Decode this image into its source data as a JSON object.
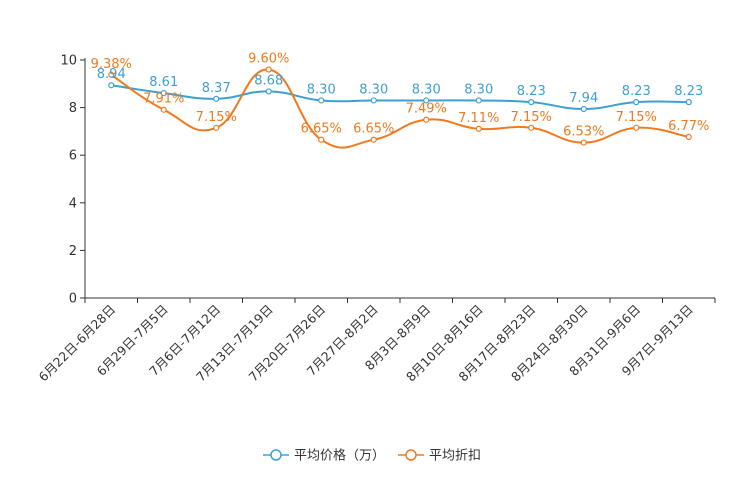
{
  "chart_data": {
    "type": "line",
    "title": "",
    "xlabel": "",
    "ylabel": "",
    "ylim": [
      0,
      10
    ],
    "yticks": [
      0,
      2,
      4,
      6,
      8,
      10
    ],
    "grid": false,
    "legend_position": "bottom-center",
    "categories": [
      "6月22日-6月28日",
      "6月29日-7月5日",
      "7月6日-7月12日",
      "7月13日-7月19日",
      "7月20日-7月26日",
      "7月27日-8月2日",
      "8月3日-8月9日",
      "8月10日-8月16日",
      "8月17日-8月23日",
      "8月24日-8月30日",
      "8月31日-9月6日",
      "9月7日-9月13日"
    ],
    "series": [
      {
        "name": "平均价格（万）",
        "color": "#3ea0d1",
        "values": [
          8.94,
          8.61,
          8.37,
          8.68,
          8.3,
          8.3,
          8.3,
          8.3,
          8.23,
          7.94,
          8.23,
          8.23
        ],
        "labels": [
          "8.94",
          "8.61",
          "8.37",
          "8.68",
          "8.30",
          "8.30",
          "8.30",
          "8.30",
          "8.23",
          "7.94",
          "8.23",
          "8.23"
        ]
      },
      {
        "name": "平均折扣",
        "color": "#ef7a1f",
        "values": [
          9.38,
          7.91,
          7.15,
          9.6,
          6.65,
          6.65,
          7.49,
          7.11,
          7.15,
          6.53,
          7.15,
          6.77
        ],
        "labels": [
          "9.38%",
          "7.91%",
          "7.15%",
          "9.60%",
          "6.65%",
          "6.65%",
          "7.49%",
          "7.11%",
          "7.15%",
          "6.53%",
          "7.15%",
          "6.77%"
        ]
      }
    ]
  }
}
